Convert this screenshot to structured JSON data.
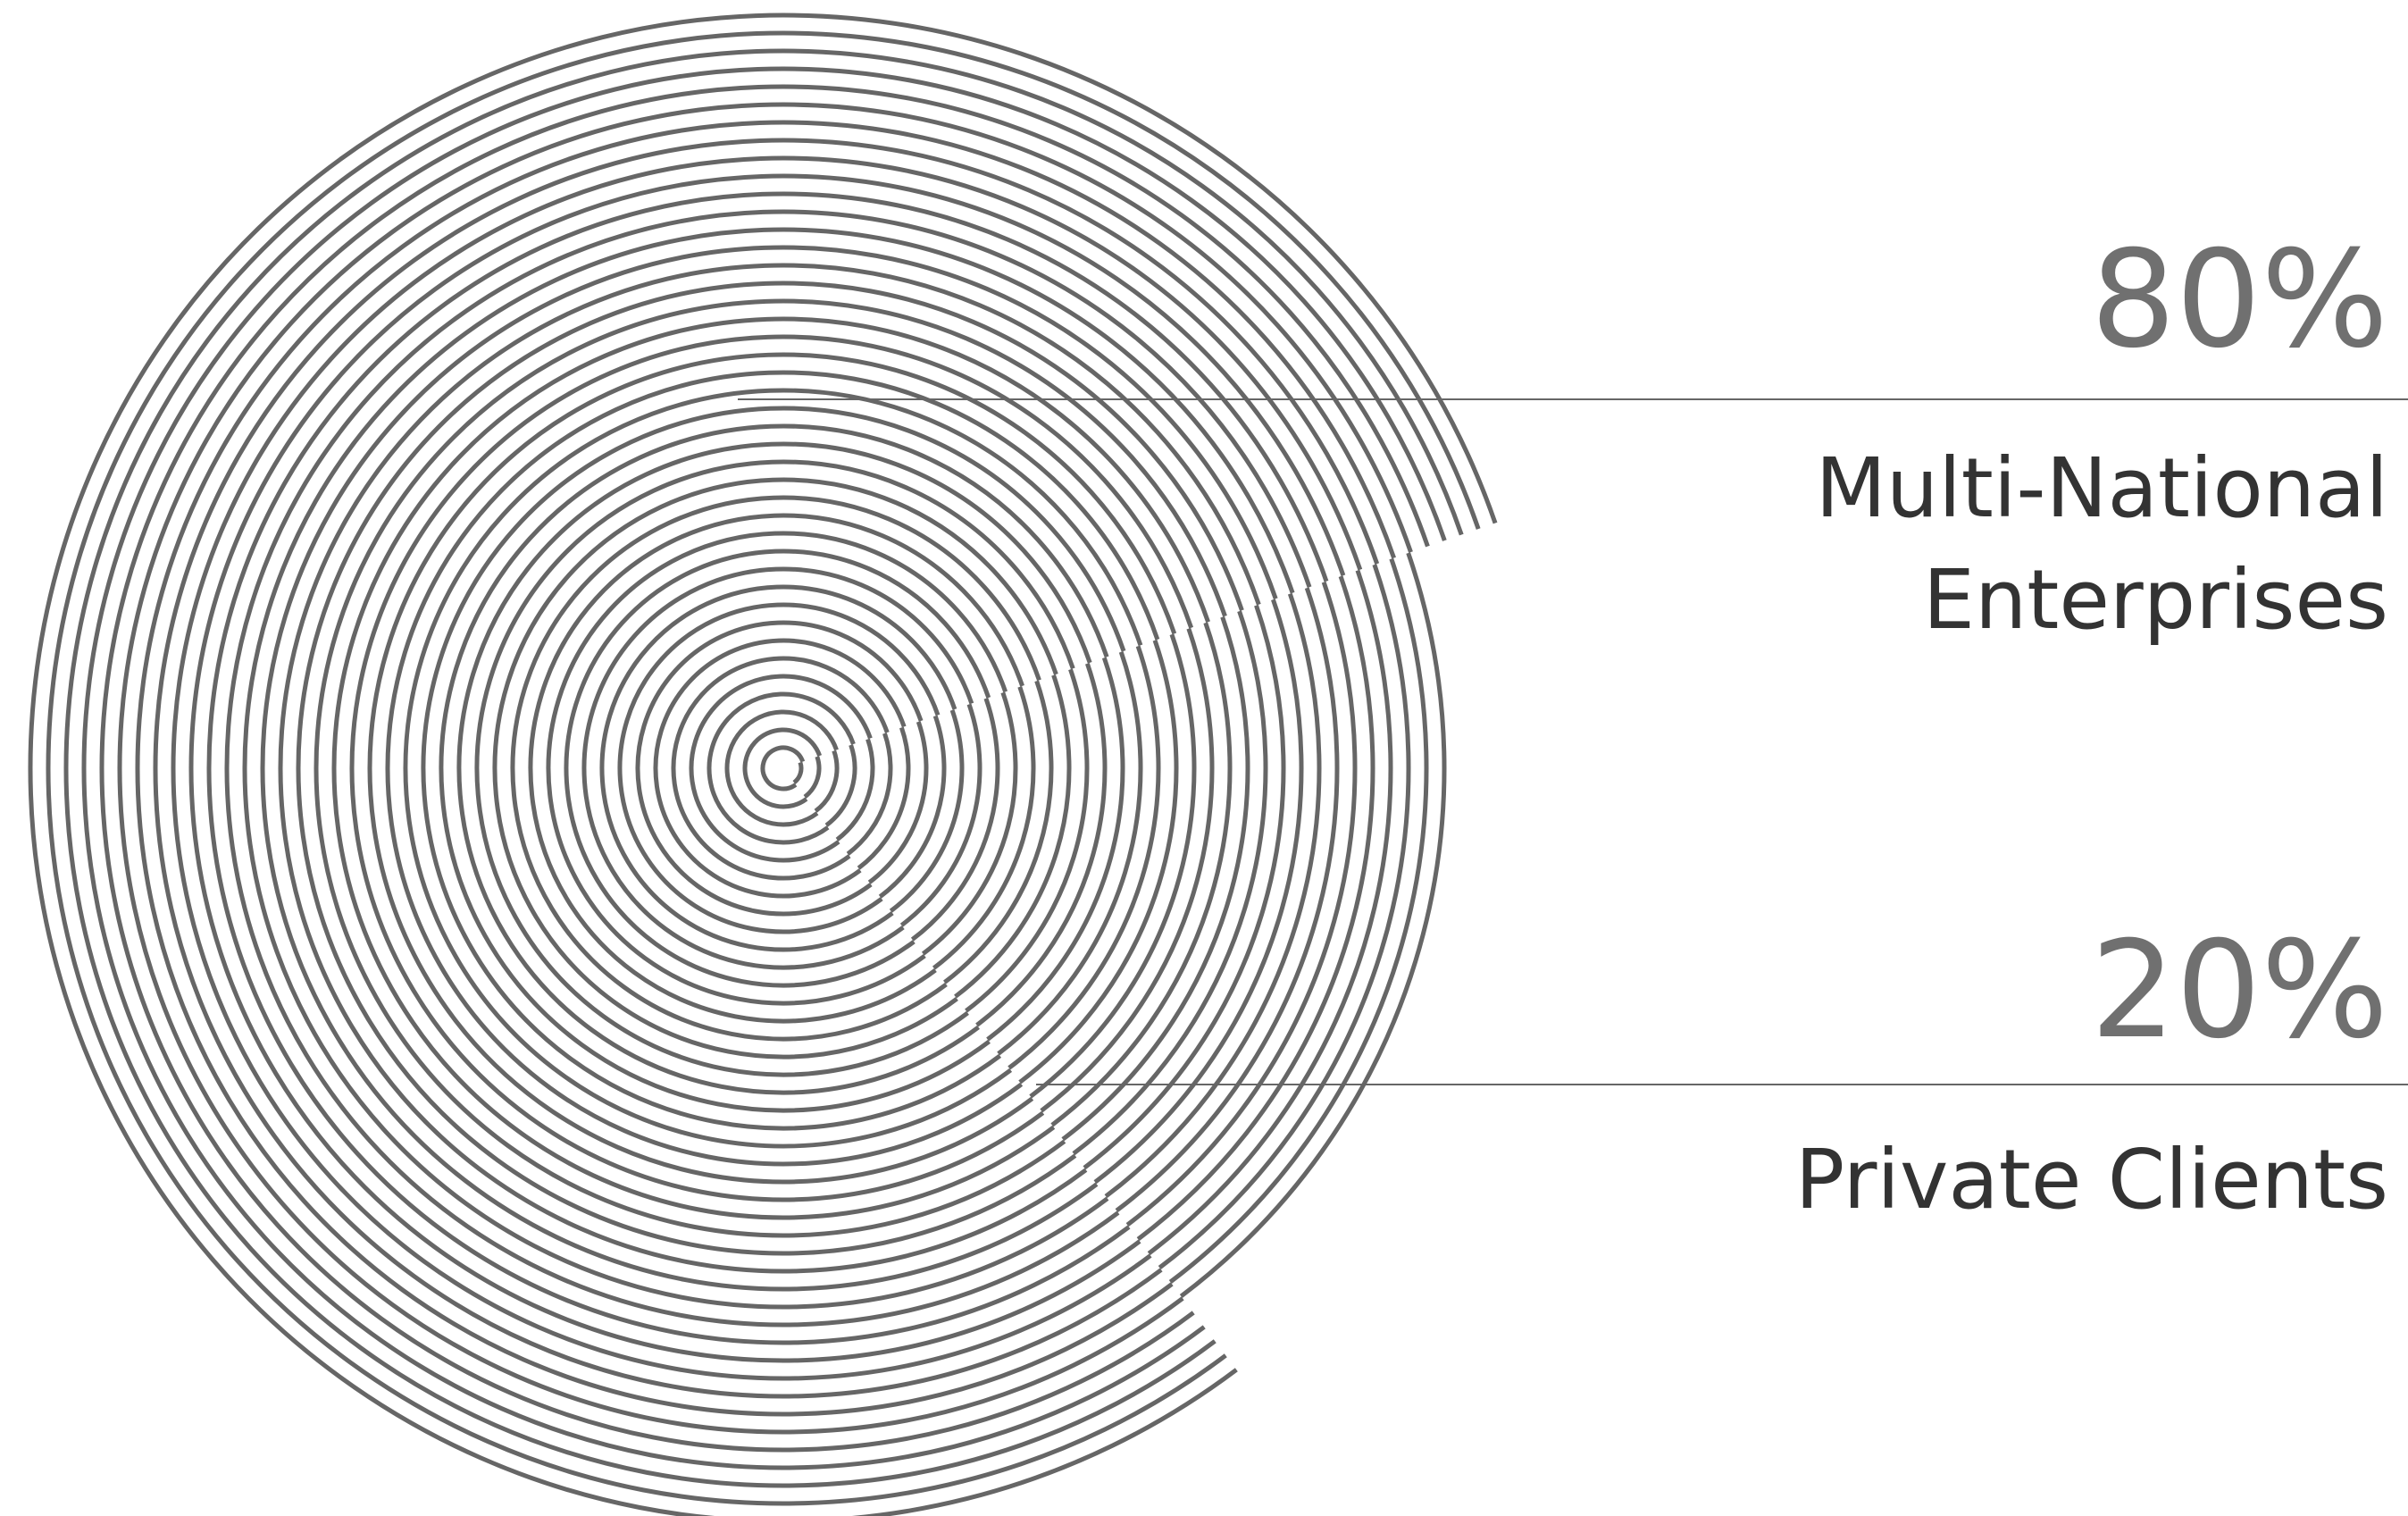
{
  "chart_data": {
    "type": "pie",
    "categories": [
      "Multi-National Enterprises",
      "Private Clients"
    ],
    "values": [
      80,
      20
    ],
    "value_labels": [
      "80%",
      "20%"
    ],
    "color": "#666666"
  }
}
